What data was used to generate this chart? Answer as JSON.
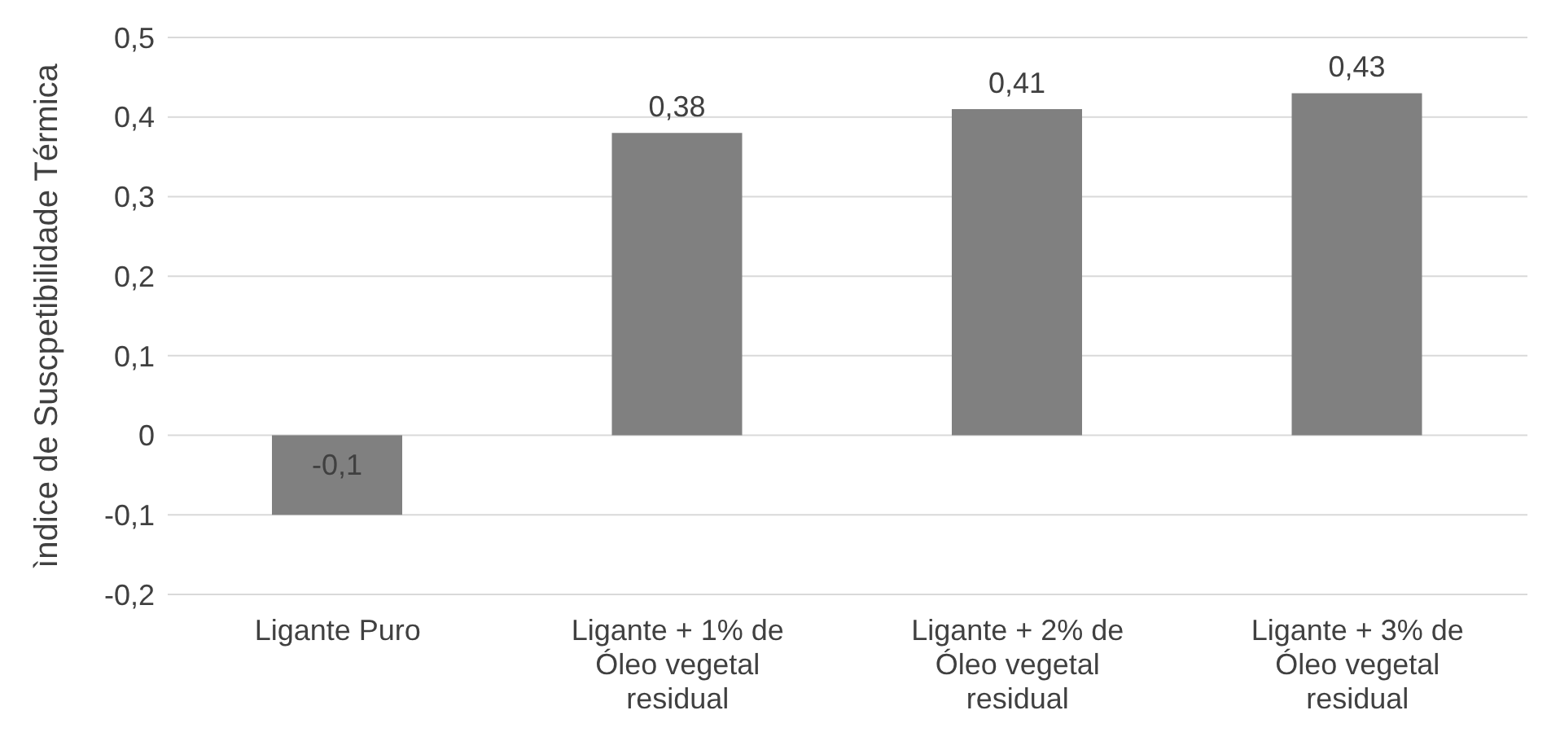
{
  "chart_data": {
    "type": "bar",
    "ylabel": "ìndice de Suscpetibilidade Térmica",
    "categories": [
      "Ligante Puro",
      "Ligante + 1% de Óleo vegetal residual",
      "Ligante + 2% de Óleo vegetal residual",
      "Ligante + 3% de Óleo vegetal residual"
    ],
    "values": [
      -0.1,
      0.38,
      0.41,
      0.43
    ],
    "value_labels": [
      "-0,1",
      "0,38",
      "0,41",
      "0,43"
    ],
    "color": "#808080",
    "ylim": [
      -0.2,
      0.5
    ],
    "yticks": [
      {
        "value": -0.2,
        "label": "-0,2"
      },
      {
        "value": -0.1,
        "label": "-0,1"
      },
      {
        "value": 0,
        "label": "0"
      },
      {
        "value": 0.1,
        "label": "0,1"
      },
      {
        "value": 0.2,
        "label": "0,2"
      },
      {
        "value": 0.3,
        "label": "0,3"
      },
      {
        "value": 0.4,
        "label": "0,4"
      },
      {
        "value": 0.5,
        "label": "0,5"
      }
    ],
    "grid": "y",
    "legend": false
  }
}
